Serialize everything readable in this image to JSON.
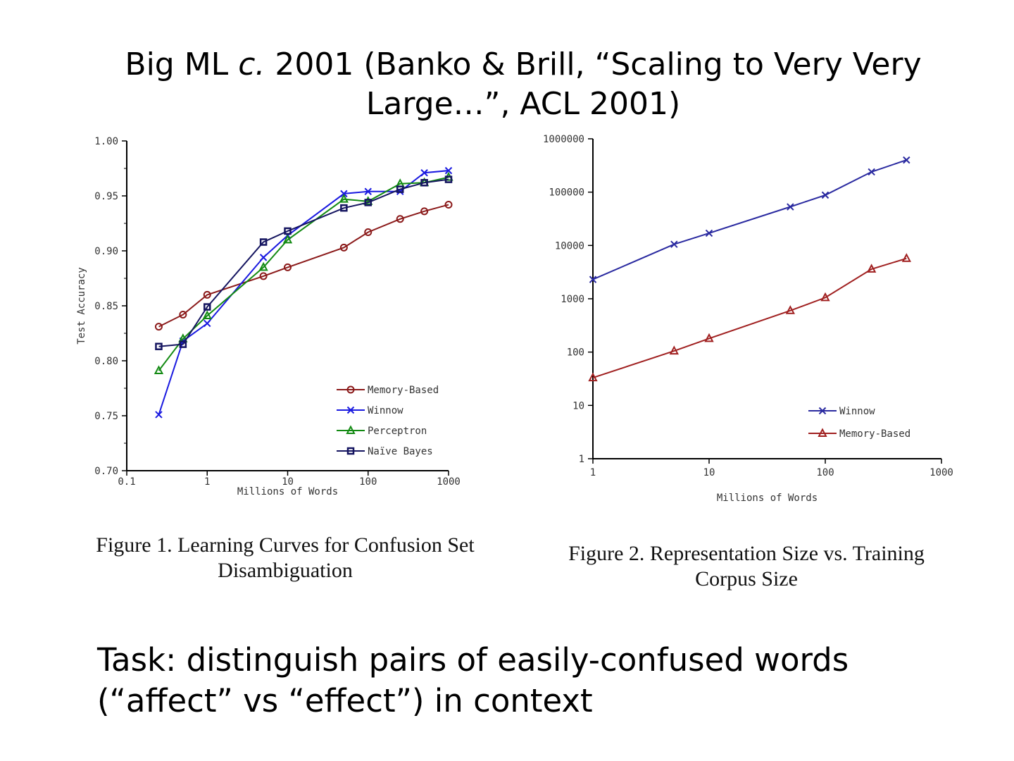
{
  "slide": {
    "title_part1": "Big ML ",
    "title_em": "c.",
    "title_part2": " 2001 (Banko & Brill, “Scaling to Very Very Large…”, ACL 2001)",
    "task_line1": "Task: distinguish pairs of easily-confused words",
    "task_line2": "(“affect” vs “effect”) in context"
  },
  "chart_data": [
    {
      "type": "line",
      "caption_line1": "Figure 1. Learning Curves for Confusion Set",
      "caption_line2": "Disambiguation",
      "xlabel": "Millions of Words",
      "ylabel": "Test Accuracy",
      "xscale": "log",
      "xlim": [
        0.1,
        1000
      ],
      "ylim": [
        0.7,
        1.0
      ],
      "xticks": [
        {
          "v": 0.1,
          "label": "0.1"
        },
        {
          "v": 1,
          "label": "1"
        },
        {
          "v": 10,
          "label": "10"
        },
        {
          "v": 100,
          "label": "100"
        },
        {
          "v": 1000,
          "label": "1000"
        }
      ],
      "yticks": [
        {
          "v": 0.7,
          "label": "0.70"
        },
        {
          "v": 0.75,
          "label": "0.75"
        },
        {
          "v": 0.8,
          "label": "0.80"
        },
        {
          "v": 0.85,
          "label": "0.85"
        },
        {
          "v": 0.9,
          "label": "0.90"
        },
        {
          "v": 0.95,
          "label": "0.95"
        },
        {
          "v": 1.0,
          "label": "1.00"
        }
      ],
      "legend_position": "bottom-right",
      "grid": false,
      "series": [
        {
          "name": "Memory-Based",
          "color": "#8b1a1a",
          "marker": "circle",
          "x": [
            0.25,
            0.5,
            1,
            5,
            10,
            50,
            100,
            250,
            500,
            1000
          ],
          "y": [
            0.831,
            0.842,
            0.86,
            0.877,
            0.885,
            0.903,
            0.917,
            0.929,
            0.936,
            0.942
          ]
        },
        {
          "name": "Winnow",
          "color": "#1a1ae0",
          "marker": "x",
          "x": [
            0.25,
            0.5,
            1,
            5,
            10,
            50,
            100,
            250,
            500,
            1000
          ],
          "y": [
            0.751,
            0.818,
            0.834,
            0.894,
            0.914,
            0.952,
            0.954,
            0.954,
            0.971,
            0.973
          ]
        },
        {
          "name": "Perceptron",
          "color": "#138a13",
          "marker": "triangle",
          "x": [
            0.25,
            0.5,
            1,
            5,
            10,
            50,
            100,
            250,
            500,
            1000
          ],
          "y": [
            0.791,
            0.82,
            0.841,
            0.885,
            0.91,
            0.947,
            0.945,
            0.961,
            0.962,
            0.967
          ]
        },
        {
          "name": "Naïve Bayes",
          "color": "#151560",
          "marker": "square",
          "x": [
            0.25,
            0.5,
            1,
            5,
            10,
            50,
            100,
            250,
            500,
            1000
          ],
          "y": [
            0.813,
            0.815,
            0.849,
            0.908,
            0.918,
            0.939,
            0.944,
            0.956,
            0.962,
            0.965
          ]
        }
      ]
    },
    {
      "type": "line",
      "caption_line1": "Figure 2. Representation Size vs. Training",
      "caption_line2": "Corpus Size",
      "xlabel": "Millions of Words",
      "ylabel": "",
      "xscale": "log",
      "yscale": "log",
      "xlim": [
        1,
        1000
      ],
      "ylim": [
        1,
        1000000
      ],
      "xticks": [
        {
          "v": 1,
          "label": "1"
        },
        {
          "v": 10,
          "label": "10"
        },
        {
          "v": 100,
          "label": "100"
        },
        {
          "v": 1000,
          "label": "1000"
        }
      ],
      "yticks": [
        {
          "v": 1,
          "label": "1"
        },
        {
          "v": 10,
          "label": "10"
        },
        {
          "v": 100,
          "label": "100"
        },
        {
          "v": 1000,
          "label": "1000"
        },
        {
          "v": 10000,
          "label": "10000"
        },
        {
          "v": 100000,
          "label": "100000"
        },
        {
          "v": 1000000,
          "label": "1000000"
        }
      ],
      "legend_position": "bottom-right",
      "grid": false,
      "series": [
        {
          "name": "Winnow",
          "color": "#2a2aa0",
          "marker": "x",
          "x": [
            1,
            5,
            10,
            50,
            100,
            250,
            500
          ],
          "y": [
            2300,
            10500,
            17000,
            53000,
            88000,
            240000,
            400000
          ]
        },
        {
          "name": "Memory-Based",
          "color": "#a02020",
          "marker": "triangle",
          "x": [
            1,
            5,
            10,
            50,
            100,
            250,
            500
          ],
          "y": [
            33,
            105,
            180,
            600,
            1050,
            3600,
            5700
          ]
        }
      ]
    }
  ]
}
